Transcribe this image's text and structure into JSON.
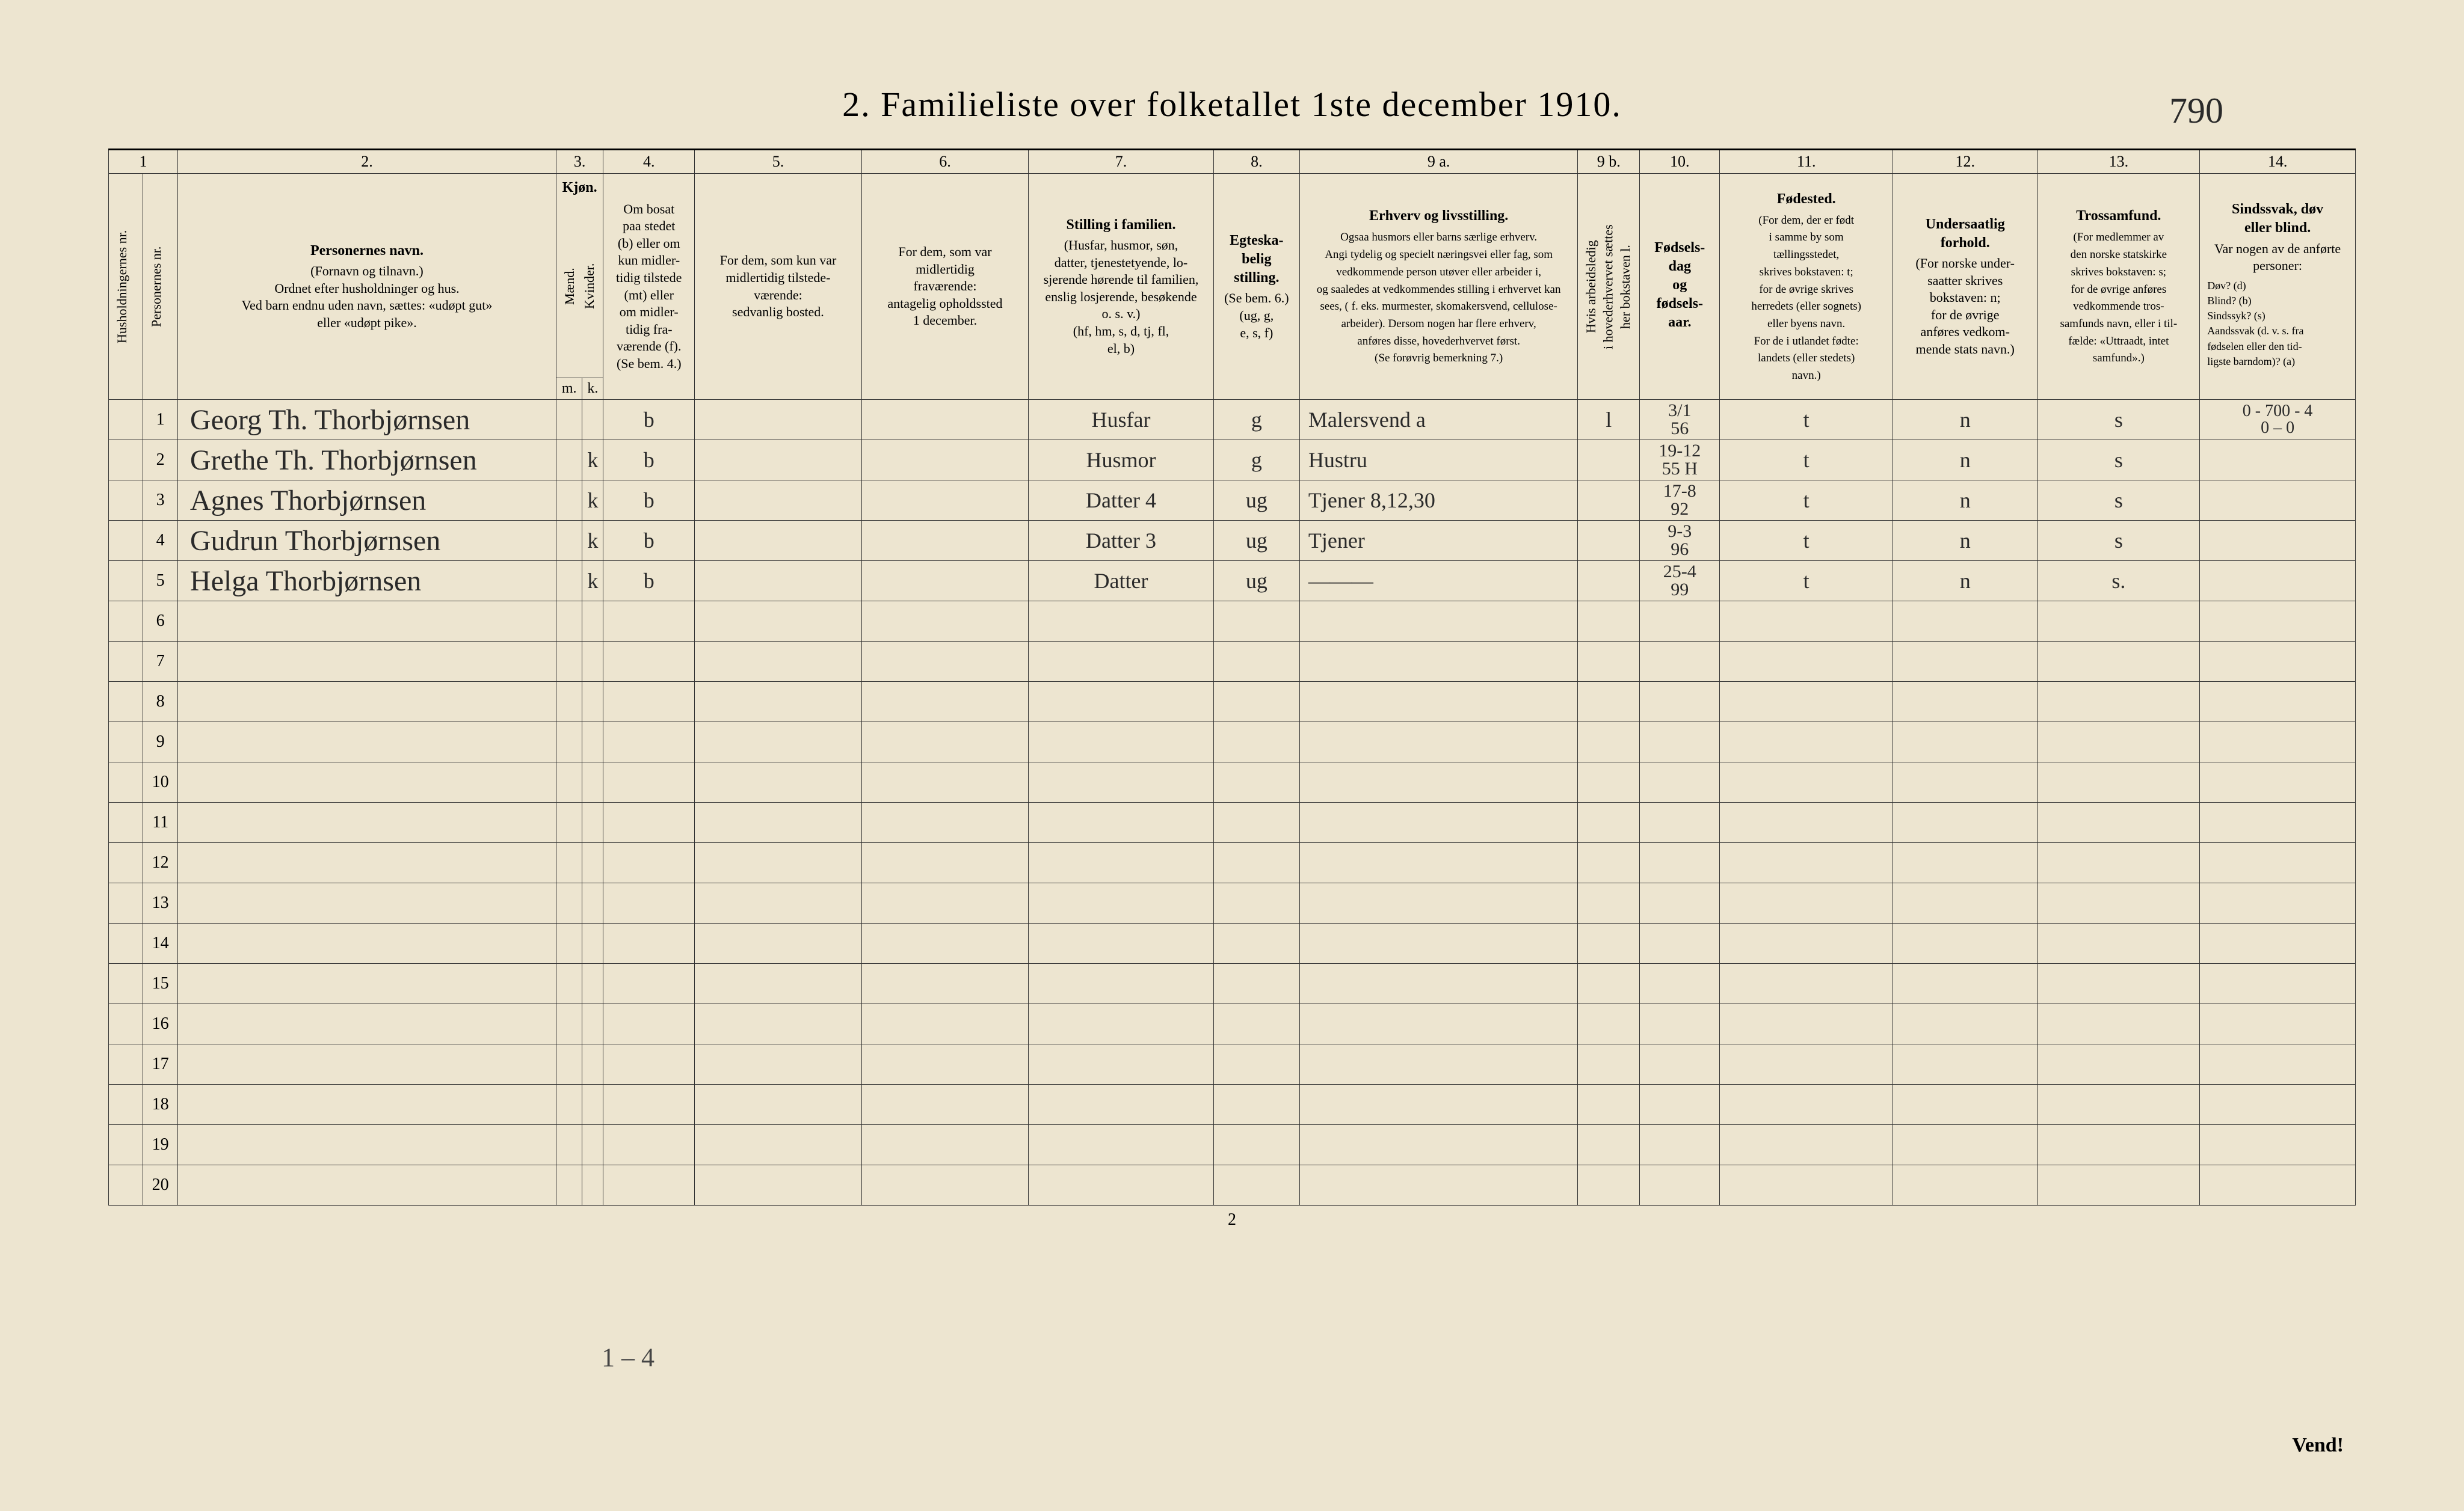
{
  "title": "2.   Familieliste over folketallet 1ste december 1910.",
  "top_annotation": "790",
  "bottom_annotation": "1 – 4",
  "page_number": "2",
  "vend": "Vend!",
  "col_numbers": [
    "1",
    "2.",
    "3.",
    "4.",
    "5.",
    "6.",
    "7.",
    "8.",
    "9 a.",
    "9 b.",
    "10.",
    "11.",
    "12.",
    "13.",
    "14."
  ],
  "headers": {
    "c1a": "Husholdningernes nr.",
    "c1b": "Personernes nr.",
    "c2_title": "Personernes navn.",
    "c2_body": "(Fornavn og tilnavn.)\nOrdnet efter husholdninger og hus.\nVed barn endnu uden navn, sættes: «udøpt gut»\neller «udøpt pike».",
    "c3_title": "Kjøn.",
    "c3_sub1": "Mænd.",
    "c3_sub2": "Kvinder.",
    "c3_m": "m.",
    "c3_k": "k.",
    "c4": "Om bosat\npaa stedet\n(b) eller om\nkun midler-\ntidig tilstede\n(mt) eller\nom midler-\ntidig fra-\nværende (f).\n(Se bem. 4.)",
    "c5": "For dem, som kun var\nmidlertidig tilstede-\nværende:\nsedvanlig bosted.",
    "c6": "For dem, som var\nmidlertidig\nfraværende:\nantagelig opholdssted\n1 december.",
    "c7_title": "Stilling i familien.",
    "c7_body": "(Husfar, husmor, søn,\ndatter, tjenestetyende, lo-\nsjerende hørende til familien,\nenslig losjerende, besøkende\no. s. v.)\n(hf, hm, s, d, tj, fl,\nel, b)",
    "c8_title": "Egteska-\nbelig\nstilling.",
    "c8_body": "(Se bem. 6.)\n(ug, g,\ne, s, f)",
    "c9a_title": "Erhverv og livsstilling.",
    "c9a_body": "Ogsaa husmors eller barns særlige erhverv.\nAngi tydelig og specielt næringsvei eller fag, som\nvedkommende person utøver eller arbeider i,\nog saaledes at vedkommendes stilling i erhvervet kan\nsees, ( f. eks. murmester, skomakersvend, cellulose-\narbeider). Dersom nogen har flere erhverv,\nanføres disse, hovederhvervet først.\n(Se forøvrig bemerkning 7.)",
    "c9b": "Hvis arbeidsledig\ni hovederhvervet sættes\nher bokstaven l.",
    "c10_title": "Fødsels-\ndag\nog\nfødsels-\naar.",
    "c11_title": "Fødested.",
    "c11_body": "(For dem, der er født\ni samme by som\ntællingsstedet,\nskrives bokstaven: t;\nfor de øvrige skrives\nherredets (eller sognets)\neller byens navn.\nFor de i utlandet fødte:\nlandets (eller stedets)\nnavn.)",
    "c12_title": "Undersaatlig\nforhold.",
    "c12_body": "(For norske under-\nsaatter skrives\nbokstaven: n;\nfor de øvrige\nanføres vedkom-\nmende stats navn.)",
    "c13_title": "Trossamfund.",
    "c13_body": "(For medlemmer av\nden norske statskirke\nskrives bokstaven: s;\nfor de øvrige anføres\nvedkommende tros-\nsamfunds navn, eller i til-\nfælde: «Uttraadt, intet\nsamfund».)",
    "c14_title": "Sindssvak, døv\neller blind.",
    "c14_body": "Var nogen av de anførte\npersoner:",
    "c14_legend": "Døv?        (d)\nBlind?       (b)\nSindssyk?  (s)\nAandssvak (d. v. s. fra\nfødselen eller den tid-\nligste barndom)?  (a)"
  },
  "rows": [
    {
      "n": "1",
      "name": "Georg Th. Thorbjørnsen",
      "sex_m": "",
      "sex_k": "",
      "bosat": "b",
      "c5": "",
      "c6": "",
      "c7": "Husfar",
      "c8": "g",
      "c9a": "Malersvend a",
      "c9b": "l",
      "c10": "3/1\n56",
      "c11": "t",
      "c12": "n",
      "c13": "s",
      "c14": "0 - 700 - 4\n0 – 0"
    },
    {
      "n": "2",
      "name": "Grethe Th. Thorbjørnsen",
      "sex_m": "",
      "sex_k": "k",
      "bosat": "b",
      "c5": "",
      "c6": "",
      "c7": "Husmor",
      "c8": "g",
      "c9a": "Hustru",
      "c9b": "",
      "c10": "19-12\n55 H",
      "c11": "t",
      "c12": "n",
      "c13": "s",
      "c14": ""
    },
    {
      "n": "3",
      "name": "Agnes Thorbjørnsen",
      "sex_m": "",
      "sex_k": "k",
      "bosat": "b",
      "c5": "",
      "c6": "",
      "c7": "Datter 4",
      "c8": "ug",
      "c9a": "Tjener   8,12,30",
      "c9b": "",
      "c10": "17-8\n92",
      "c11": "t",
      "c12": "n",
      "c13": "s",
      "c14": ""
    },
    {
      "n": "4",
      "name": "Gudrun Thorbjørnsen",
      "sex_m": "",
      "sex_k": "k",
      "bosat": "b",
      "c5": "",
      "c6": "",
      "c7": "Datter 3",
      "c8": "ug",
      "c9a": "Tjener",
      "c9b": "",
      "c10": "9-3\n96",
      "c11": "t",
      "c12": "n",
      "c13": "s",
      "c14": ""
    },
    {
      "n": "5",
      "name": "Helga Thorbjørnsen",
      "sex_m": "",
      "sex_k": "k",
      "bosat": "b",
      "c5": "",
      "c6": "",
      "c7": "Datter",
      "c8": "ug",
      "c9a": "———",
      "c9b": "",
      "c10": "25-4\n99",
      "c11": "t",
      "c12": "n",
      "c13": "s.",
      "c14": ""
    }
  ],
  "empty_rows": [
    "6",
    "7",
    "8",
    "9",
    "10",
    "11",
    "12",
    "13",
    "14",
    "15",
    "16",
    "17",
    "18",
    "19",
    "20"
  ],
  "colors": {
    "paper": "#ede5d0",
    "ink": "#2a2a2a",
    "rule": "#333333",
    "border_dark": "#000000"
  }
}
